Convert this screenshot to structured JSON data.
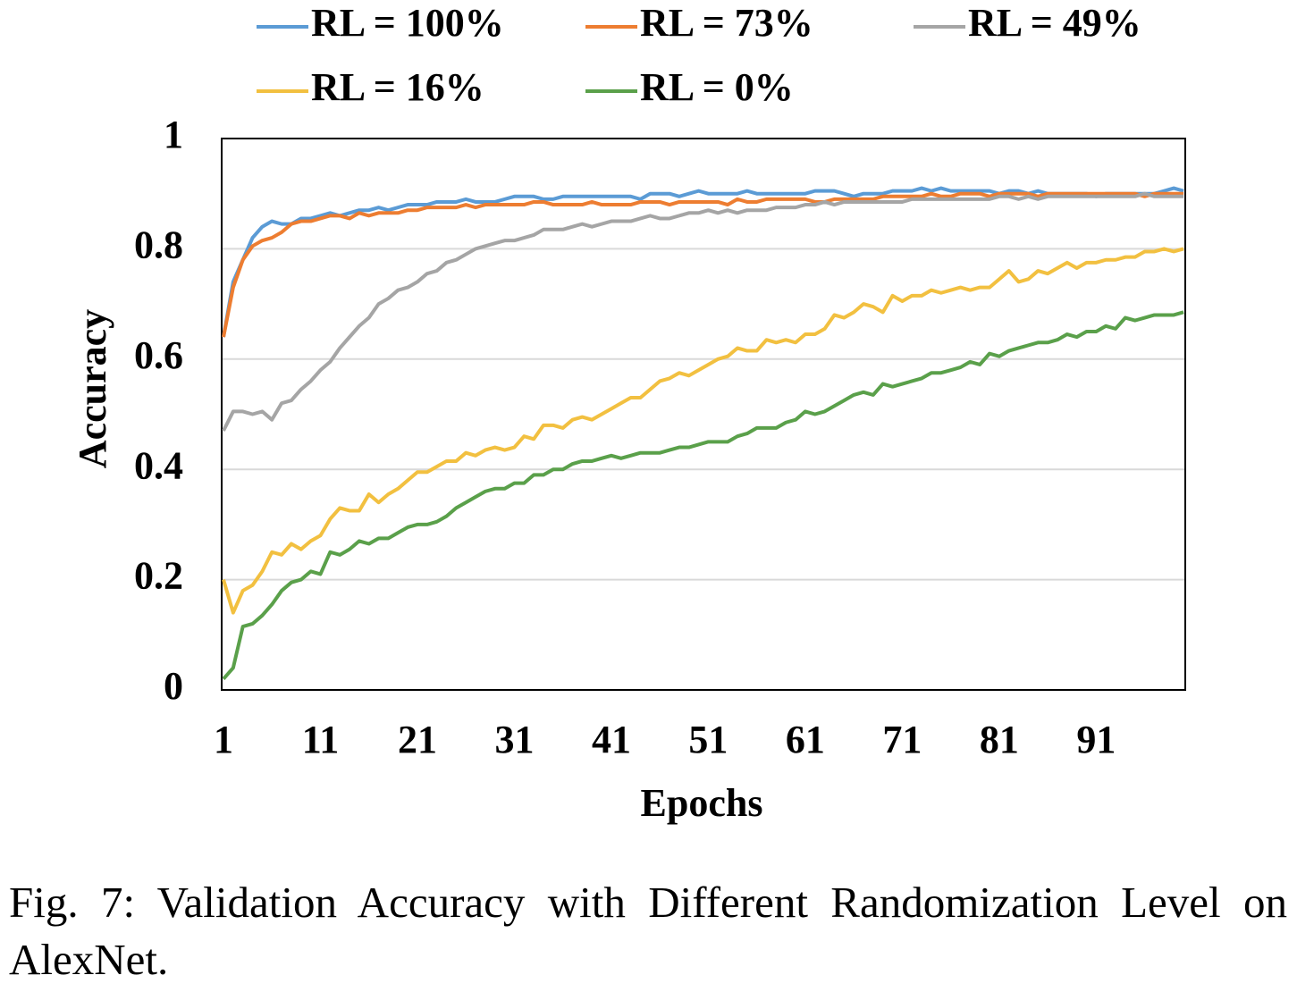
{
  "chart_data": {
    "type": "line",
    "x_label": "Epochs",
    "y_label": "Accuracy",
    "x": [
      1,
      2,
      3,
      4,
      5,
      6,
      7,
      8,
      9,
      10,
      11,
      12,
      13,
      14,
      15,
      16,
      17,
      18,
      19,
      20,
      21,
      22,
      23,
      24,
      25,
      26,
      27,
      28,
      29,
      30,
      31,
      32,
      33,
      34,
      35,
      36,
      37,
      38,
      39,
      40,
      41,
      42,
      43,
      44,
      45,
      46,
      47,
      48,
      49,
      50,
      51,
      52,
      53,
      54,
      55,
      56,
      57,
      58,
      59,
      60,
      61,
      62,
      63,
      64,
      65,
      66,
      67,
      68,
      69,
      70,
      71,
      72,
      73,
      74,
      75,
      76,
      77,
      78,
      79,
      80,
      81,
      82,
      83,
      84,
      85,
      86,
      87,
      88,
      89,
      90,
      91,
      92,
      93,
      94,
      95,
      96,
      97,
      98,
      99,
      100
    ],
    "xlim": [
      1,
      100
    ],
    "xticks": [
      1,
      11,
      21,
      31,
      41,
      51,
      61,
      71,
      81,
      91
    ],
    "ylim": [
      0,
      1
    ],
    "yticks": [
      0,
      0.2,
      0.4,
      0.6,
      0.8,
      1
    ],
    "grid": true,
    "legend": "top",
    "series": [
      {
        "name": "RL = 100%",
        "color": "#5b9bd5",
        "values": [
          0.64,
          0.74,
          0.78,
          0.82,
          0.84,
          0.85,
          0.845,
          0.845,
          0.855,
          0.855,
          0.86,
          0.865,
          0.86,
          0.865,
          0.87,
          0.87,
          0.875,
          0.87,
          0.875,
          0.88,
          0.88,
          0.88,
          0.885,
          0.885,
          0.885,
          0.89,
          0.885,
          0.885,
          0.885,
          0.89,
          0.895,
          0.895,
          0.895,
          0.89,
          0.89,
          0.895,
          0.895,
          0.895,
          0.895,
          0.895,
          0.895,
          0.895,
          0.895,
          0.89,
          0.9,
          0.9,
          0.9,
          0.895,
          0.9,
          0.905,
          0.9,
          0.9,
          0.9,
          0.9,
          0.905,
          0.9,
          0.9,
          0.9,
          0.9,
          0.9,
          0.9,
          0.905,
          0.905,
          0.905,
          0.9,
          0.895,
          0.9,
          0.9,
          0.9,
          0.905,
          0.905,
          0.905,
          0.91,
          0.905,
          0.91,
          0.905,
          0.905,
          0.905,
          0.905,
          0.905,
          0.9,
          0.905,
          0.905,
          0.9,
          0.905,
          0.9,
          0.9,
          0.9,
          0.9,
          0.9,
          0.895,
          0.9,
          0.9,
          0.9,
          0.9,
          0.9,
          0.9,
          0.905,
          0.91,
          0.905
        ]
      },
      {
        "name": "RL = 73%",
        "color": "#ed7d31",
        "values": [
          0.64,
          0.73,
          0.78,
          0.805,
          0.815,
          0.82,
          0.83,
          0.845,
          0.85,
          0.85,
          0.855,
          0.86,
          0.86,
          0.855,
          0.865,
          0.86,
          0.865,
          0.865,
          0.865,
          0.87,
          0.87,
          0.875,
          0.875,
          0.875,
          0.875,
          0.88,
          0.875,
          0.88,
          0.88,
          0.88,
          0.88,
          0.88,
          0.885,
          0.885,
          0.88,
          0.88,
          0.88,
          0.88,
          0.885,
          0.88,
          0.88,
          0.88,
          0.88,
          0.885,
          0.885,
          0.885,
          0.88,
          0.885,
          0.885,
          0.885,
          0.885,
          0.885,
          0.88,
          0.89,
          0.885,
          0.885,
          0.89,
          0.89,
          0.89,
          0.89,
          0.89,
          0.885,
          0.885,
          0.89,
          0.89,
          0.89,
          0.89,
          0.89,
          0.895,
          0.895,
          0.895,
          0.895,
          0.895,
          0.9,
          0.895,
          0.895,
          0.9,
          0.9,
          0.9,
          0.895,
          0.9,
          0.9,
          0.9,
          0.9,
          0.895,
          0.9,
          0.9,
          0.9,
          0.9,
          0.9,
          0.9,
          0.9,
          0.9,
          0.9,
          0.9,
          0.895,
          0.9,
          0.9,
          0.9,
          0.9
        ]
      },
      {
        "name": "RL = 49%",
        "color": "#a5a5a5",
        "values": [
          0.47,
          0.505,
          0.505,
          0.5,
          0.505,
          0.49,
          0.52,
          0.525,
          0.545,
          0.56,
          0.58,
          0.595,
          0.62,
          0.64,
          0.66,
          0.675,
          0.7,
          0.71,
          0.725,
          0.73,
          0.74,
          0.755,
          0.76,
          0.775,
          0.78,
          0.79,
          0.8,
          0.805,
          0.81,
          0.815,
          0.815,
          0.82,
          0.825,
          0.835,
          0.835,
          0.835,
          0.84,
          0.845,
          0.84,
          0.845,
          0.85,
          0.85,
          0.85,
          0.855,
          0.86,
          0.855,
          0.855,
          0.86,
          0.865,
          0.865,
          0.87,
          0.865,
          0.87,
          0.865,
          0.87,
          0.87,
          0.87,
          0.875,
          0.875,
          0.875,
          0.88,
          0.88,
          0.885,
          0.88,
          0.885,
          0.885,
          0.885,
          0.885,
          0.885,
          0.885,
          0.885,
          0.89,
          0.89,
          0.89,
          0.89,
          0.89,
          0.89,
          0.89,
          0.89,
          0.89,
          0.895,
          0.895,
          0.89,
          0.895,
          0.89,
          0.895,
          0.895,
          0.895,
          0.895,
          0.895,
          0.895,
          0.895,
          0.895,
          0.895,
          0.895,
          0.9,
          0.895,
          0.895,
          0.895,
          0.895
        ]
      },
      {
        "name": "RL = 16%",
        "color": "#f2c040",
        "values": [
          0.2,
          0.14,
          0.18,
          0.19,
          0.215,
          0.25,
          0.245,
          0.265,
          0.255,
          0.27,
          0.28,
          0.31,
          0.33,
          0.325,
          0.325,
          0.355,
          0.34,
          0.355,
          0.365,
          0.38,
          0.395,
          0.395,
          0.405,
          0.415,
          0.415,
          0.43,
          0.425,
          0.435,
          0.44,
          0.435,
          0.44,
          0.46,
          0.455,
          0.48,
          0.48,
          0.475,
          0.49,
          0.495,
          0.49,
          0.5,
          0.51,
          0.52,
          0.53,
          0.53,
          0.545,
          0.56,
          0.565,
          0.575,
          0.57,
          0.58,
          0.59,
          0.6,
          0.605,
          0.62,
          0.615,
          0.615,
          0.635,
          0.63,
          0.635,
          0.63,
          0.645,
          0.645,
          0.655,
          0.68,
          0.675,
          0.685,
          0.7,
          0.695,
          0.685,
          0.715,
          0.705,
          0.715,
          0.715,
          0.725,
          0.72,
          0.725,
          0.73,
          0.725,
          0.73,
          0.73,
          0.745,
          0.76,
          0.74,
          0.745,
          0.76,
          0.755,
          0.765,
          0.775,
          0.765,
          0.775,
          0.775,
          0.78,
          0.78,
          0.785,
          0.785,
          0.795,
          0.795,
          0.8,
          0.795,
          0.8
        ]
      },
      {
        "name": "RL = 0%",
        "color": "#5aa04a",
        "values": [
          0.02,
          0.04,
          0.115,
          0.12,
          0.135,
          0.155,
          0.18,
          0.195,
          0.2,
          0.215,
          0.21,
          0.25,
          0.245,
          0.255,
          0.27,
          0.265,
          0.275,
          0.275,
          0.285,
          0.295,
          0.3,
          0.3,
          0.305,
          0.315,
          0.33,
          0.34,
          0.35,
          0.36,
          0.365,
          0.365,
          0.375,
          0.375,
          0.39,
          0.39,
          0.4,
          0.4,
          0.41,
          0.415,
          0.415,
          0.42,
          0.425,
          0.42,
          0.425,
          0.43,
          0.43,
          0.43,
          0.435,
          0.44,
          0.44,
          0.445,
          0.45,
          0.45,
          0.45,
          0.46,
          0.465,
          0.475,
          0.475,
          0.475,
          0.485,
          0.49,
          0.505,
          0.5,
          0.505,
          0.515,
          0.525,
          0.535,
          0.54,
          0.535,
          0.555,
          0.55,
          0.555,
          0.56,
          0.565,
          0.575,
          0.575,
          0.58,
          0.585,
          0.595,
          0.59,
          0.61,
          0.605,
          0.615,
          0.62,
          0.625,
          0.63,
          0.63,
          0.635,
          0.645,
          0.64,
          0.65,
          0.65,
          0.66,
          0.655,
          0.675,
          0.67,
          0.675,
          0.68,
          0.68,
          0.68,
          0.685
        ]
      }
    ]
  },
  "caption": "Fig. 7: Validation Accuracy with Different Randomization Level on AlexNet."
}
